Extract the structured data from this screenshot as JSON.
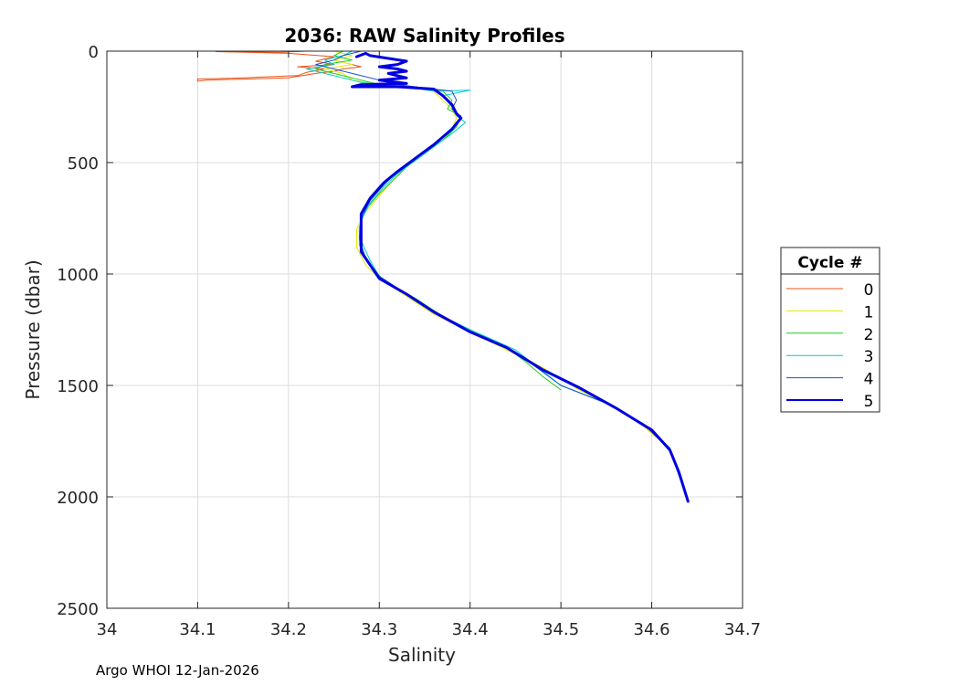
{
  "chart_data": {
    "type": "line",
    "title": "2036: RAW Salinity Profiles",
    "xlabel": "Salinity",
    "ylabel": "Pressure (dbar)",
    "xlim": [
      34.0,
      34.7
    ],
    "ylim": [
      0,
      2500
    ],
    "y_reversed": true,
    "xticks": [
      34.0,
      34.1,
      34.2,
      34.3,
      34.4,
      34.5,
      34.6,
      34.7
    ],
    "xtick_labels": [
      "34",
      "34.1",
      "34.2",
      "34.3",
      "34.4",
      "34.5",
      "34.6",
      "34.7"
    ],
    "yticks": [
      0,
      500,
      1000,
      1500,
      2000,
      2500
    ],
    "ytick_labels": [
      "0",
      "500",
      "1000",
      "1500",
      "2000",
      "2500"
    ],
    "grid": true,
    "legend": {
      "title": "Cycle #",
      "placement": "outside-right",
      "entries": [
        "0",
        "1",
        "2",
        "3",
        "4",
        "5"
      ]
    },
    "series": [
      {
        "name": "0",
        "color": "#e8541a",
        "width": 1,
        "points": [
          [
            34.22,
            0
          ],
          [
            34.19,
            5
          ],
          [
            34.12,
            2
          ],
          [
            34.2,
            10
          ],
          [
            34.25,
            25
          ],
          [
            34.23,
            45
          ],
          [
            34.25,
            60
          ],
          [
            34.21,
            70
          ],
          [
            34.24,
            80
          ],
          [
            34.22,
            95
          ],
          [
            34.21,
            110
          ],
          [
            34.15,
            120
          ],
          [
            34.1,
            125
          ],
          [
            34.1,
            135
          ],
          [
            34.11,
            130
          ],
          [
            34.2,
            120
          ],
          [
            34.23,
            100
          ],
          [
            34.25,
            90
          ],
          [
            34.26,
            80
          ],
          [
            34.28,
            70
          ],
          [
            34.27,
            60
          ]
        ]
      },
      {
        "name": "1",
        "color": "#e6e600",
        "width": 1,
        "points": [
          [
            34.25,
            0
          ],
          [
            34.27,
            20
          ],
          [
            34.25,
            40
          ],
          [
            34.27,
            60
          ],
          [
            34.24,
            80
          ],
          [
            34.26,
            100
          ],
          [
            34.27,
            130
          ],
          [
            34.3,
            150
          ],
          [
            34.33,
            160
          ],
          [
            34.36,
            180
          ],
          [
            34.37,
            220
          ],
          [
            34.38,
            260
          ],
          [
            34.385,
            300
          ],
          [
            34.38,
            350
          ],
          [
            34.37,
            400
          ],
          [
            34.35,
            450
          ],
          [
            34.33,
            520
          ],
          [
            34.315,
            580
          ],
          [
            34.3,
            650
          ],
          [
            34.285,
            720
          ],
          [
            34.275,
            800
          ],
          [
            34.275,
            880
          ],
          [
            34.285,
            960
          ],
          [
            34.3,
            1020
          ],
          [
            34.33,
            1100
          ],
          [
            34.36,
            1180
          ],
          [
            34.4,
            1260
          ],
          [
            34.44,
            1340
          ],
          [
            34.48,
            1420
          ],
          [
            34.52,
            1520
          ],
          [
            34.56,
            1600
          ],
          [
            34.59,
            1680
          ],
          [
            34.61,
            1750
          ]
        ]
      },
      {
        "name": "2",
        "color": "#22cc22",
        "width": 1,
        "points": [
          [
            34.26,
            0
          ],
          [
            34.25,
            20
          ],
          [
            34.27,
            40
          ],
          [
            34.24,
            60
          ],
          [
            34.23,
            80
          ],
          [
            34.25,
            100
          ],
          [
            34.27,
            120
          ],
          [
            34.3,
            150
          ],
          [
            34.34,
            160
          ],
          [
            34.37,
            180
          ],
          [
            34.38,
            220
          ],
          [
            34.375,
            260
          ],
          [
            34.39,
            290
          ],
          [
            34.385,
            340
          ],
          [
            34.37,
            400
          ],
          [
            34.35,
            450
          ],
          [
            34.33,
            520
          ],
          [
            34.315,
            580
          ],
          [
            34.3,
            640
          ],
          [
            34.285,
            710
          ],
          [
            34.278,
            790
          ],
          [
            34.278,
            870
          ],
          [
            34.29,
            960
          ],
          [
            34.305,
            1030
          ],
          [
            34.34,
            1110
          ],
          [
            34.37,
            1190
          ],
          [
            34.41,
            1270
          ],
          [
            34.44,
            1330
          ],
          [
            34.46,
            1390
          ],
          [
            34.48,
            1460
          ],
          [
            34.5,
            1520
          ]
        ]
      },
      {
        "name": "3",
        "color": "#00cccc",
        "width": 1,
        "points": [
          [
            34.27,
            0
          ],
          [
            34.26,
            20
          ],
          [
            34.24,
            40
          ],
          [
            34.25,
            60
          ],
          [
            34.22,
            80
          ],
          [
            34.24,
            100
          ],
          [
            34.26,
            120
          ],
          [
            34.28,
            140
          ],
          [
            34.33,
            160
          ],
          [
            34.36,
            180
          ],
          [
            34.4,
            175
          ],
          [
            34.37,
            200
          ],
          [
            34.38,
            250
          ],
          [
            34.385,
            290
          ],
          [
            34.395,
            320
          ],
          [
            34.38,
            370
          ],
          [
            34.36,
            430
          ],
          [
            34.34,
            490
          ],
          [
            34.32,
            550
          ],
          [
            34.305,
            610
          ],
          [
            34.29,
            680
          ],
          [
            34.28,
            760
          ],
          [
            34.28,
            850
          ],
          [
            34.29,
            940
          ],
          [
            34.3,
            1010
          ],
          [
            34.33,
            1090
          ],
          [
            34.36,
            1170
          ],
          [
            34.4,
            1250
          ],
          [
            34.45,
            1340
          ],
          [
            34.5,
            1500
          ],
          [
            34.55,
            1580
          ],
          [
            34.59,
            1670
          ],
          [
            34.62,
            1780
          ],
          [
            34.64,
            2020
          ]
        ]
      },
      {
        "name": "4",
        "color": "#1a4fd6",
        "width": 1,
        "points": [
          [
            34.28,
            0
          ],
          [
            34.26,
            20
          ],
          [
            34.25,
            40
          ],
          [
            34.23,
            60
          ],
          [
            34.25,
            80
          ],
          [
            34.27,
            100
          ],
          [
            34.3,
            130
          ],
          [
            34.32,
            150
          ],
          [
            34.35,
            165
          ],
          [
            34.38,
            180
          ],
          [
            34.385,
            220
          ],
          [
            34.38,
            260
          ],
          [
            34.39,
            300
          ],
          [
            34.38,
            350
          ],
          [
            34.36,
            420
          ],
          [
            34.34,
            480
          ],
          [
            34.32,
            540
          ],
          [
            34.305,
            600
          ],
          [
            34.29,
            670
          ],
          [
            34.28,
            750
          ],
          [
            34.278,
            840
          ],
          [
            34.285,
            930
          ],
          [
            34.3,
            1010
          ],
          [
            34.33,
            1090
          ],
          [
            34.36,
            1170
          ],
          [
            34.4,
            1260
          ],
          [
            34.45,
            1350
          ],
          [
            34.5,
            1500
          ],
          [
            34.55,
            1580
          ],
          [
            34.59,
            1670
          ],
          [
            34.62,
            1790
          ],
          [
            34.64,
            2020
          ]
        ]
      },
      {
        "name": "5",
        "color": "#0000e0",
        "width": 3,
        "points": [
          [
            34.275,
            25
          ],
          [
            34.285,
            10
          ],
          [
            34.29,
            20
          ],
          [
            34.33,
            45
          ],
          [
            34.32,
            60
          ],
          [
            34.3,
            70
          ],
          [
            34.32,
            80
          ],
          [
            34.33,
            90
          ],
          [
            34.31,
            100
          ],
          [
            34.33,
            120
          ],
          [
            34.3,
            130
          ],
          [
            34.33,
            145
          ],
          [
            34.28,
            150
          ],
          [
            34.27,
            160
          ],
          [
            34.32,
            160
          ],
          [
            34.36,
            170
          ],
          [
            34.37,
            200
          ],
          [
            34.38,
            240
          ],
          [
            34.385,
            280
          ],
          [
            34.39,
            300
          ],
          [
            34.38,
            350
          ],
          [
            34.36,
            420
          ],
          [
            34.34,
            480
          ],
          [
            34.32,
            540
          ],
          [
            34.305,
            590
          ],
          [
            34.29,
            660
          ],
          [
            34.28,
            730
          ],
          [
            34.28,
            820
          ],
          [
            34.28,
            900
          ],
          [
            34.29,
            960
          ],
          [
            34.3,
            1020
          ],
          [
            34.33,
            1090
          ],
          [
            34.36,
            1170
          ],
          [
            34.4,
            1260
          ],
          [
            34.44,
            1330
          ],
          [
            34.48,
            1430
          ],
          [
            34.52,
            1510
          ],
          [
            34.56,
            1600
          ],
          [
            34.58,
            1650
          ],
          [
            34.6,
            1700
          ],
          [
            34.62,
            1790
          ],
          [
            34.63,
            1890
          ],
          [
            34.64,
            2020
          ]
        ]
      }
    ]
  },
  "footer": {
    "text": "Argo WHOI 12-Jan-2026"
  }
}
